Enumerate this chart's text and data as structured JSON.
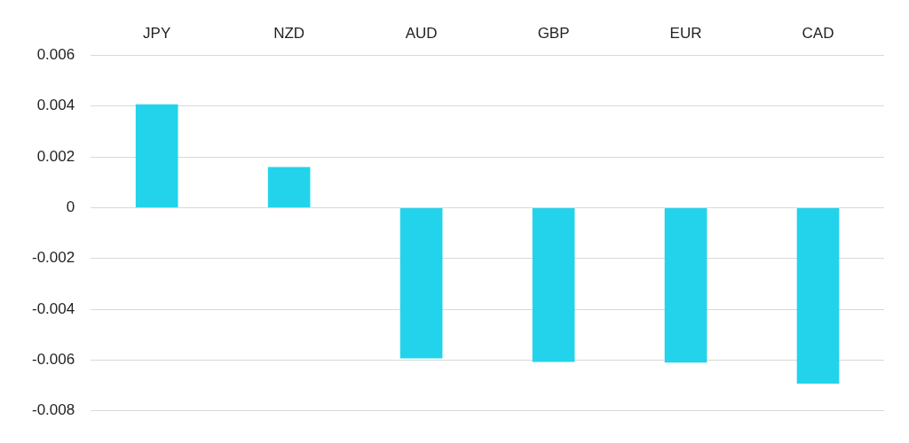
{
  "chart_data": {
    "type": "bar",
    "categories": [
      "JPY",
      "NZD",
      "AUD",
      "GBP",
      "EUR",
      "CAD"
    ],
    "values": [
      0.00407,
      0.0016,
      -0.00593,
      -0.00607,
      -0.0061,
      -0.00693
    ],
    "color": "#22d3eb",
    "ylim": [
      -0.008,
      0.006
    ],
    "yticks": [
      -0.008,
      -0.006,
      -0.004,
      -0.002,
      0,
      0.002,
      0.004,
      0.006
    ],
    "grid": "y",
    "legend": false
  }
}
